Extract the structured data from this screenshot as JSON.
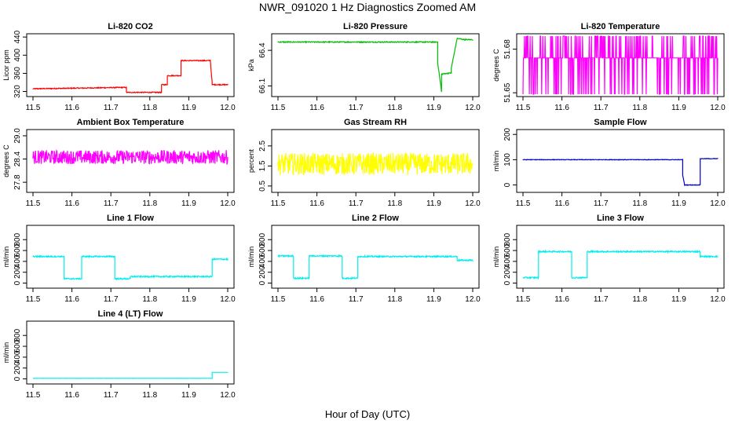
{
  "title": "NWR_091020  1 Hz Diagnostics Zoomed AM",
  "xlabel": "Hour of Day (UTC)",
  "chart_data": [
    {
      "id": "co2",
      "type": "line",
      "title": "Li-820 CO2",
      "ylabel": "Licor ppm",
      "color": "#ff0000",
      "xlim": [
        11.5,
        12.0
      ],
      "xticks": [
        "11.5",
        "11.6",
        "11.7",
        "11.8",
        "11.9",
        "12.0"
      ],
      "ylim": [
        314,
        442
      ],
      "yticks": [
        "320",
        "360",
        "400",
        "440"
      ],
      "noise": 1,
      "x": [
        11.5,
        11.74,
        11.74,
        11.83,
        11.83,
        11.845,
        11.845,
        11.88,
        11.88,
        11.955,
        11.955,
        11.96,
        11.96,
        11.96,
        12.0
      ],
      "y": [
        326,
        329,
        318,
        318,
        335,
        335,
        355,
        355,
        388,
        388,
        390,
        340,
        340,
        335,
        335
      ]
    },
    {
      "id": "pressure",
      "type": "line",
      "title": "Li-820 Pressure",
      "ylabel": "kPa",
      "color": "#00bb00",
      "xlim": [
        11.5,
        12.0
      ],
      "xticks": [
        "11.5",
        "11.6",
        "11.7",
        "11.8",
        "11.9",
        "12.0"
      ],
      "ylim": [
        66.03,
        66.52
      ],
      "yticks": [
        "66.1",
        "66.4"
      ],
      "noise": 0.004,
      "x": [
        11.5,
        11.91,
        11.91,
        11.92,
        11.92,
        11.945,
        11.945,
        11.96,
        11.96,
        11.98,
        11.98,
        12.0
      ],
      "y": [
        66.47,
        66.47,
        66.3,
        66.05,
        66.2,
        66.21,
        66.25,
        66.5,
        66.5,
        66.49,
        66.49,
        66.49
      ]
    },
    {
      "id": "temperature",
      "type": "line",
      "title": "Li-820 Temperature",
      "ylabel": "degrees C",
      "color": "#ff00ff",
      "xlim": [
        11.5,
        12.0
      ],
      "xticks": [
        "11.5",
        "11.6",
        "11.7",
        "11.8",
        "11.9",
        "12.0"
      ],
      "ylim": [
        51.649,
        51.689
      ],
      "yticks": [
        "51.65",
        "51.68"
      ],
      "states": [
        51.649,
        51.674,
        51.689
      ],
      "noise": 0,
      "x": [
        11.5,
        12.0
      ],
      "y": [
        51.674,
        51.674
      ]
    },
    {
      "id": "ambient",
      "type": "line",
      "title": "Ambient Box Temperature",
      "ylabel": "degrees C",
      "color": "#ff00ff",
      "xlim": [
        11.5,
        12.0
      ],
      "xticks": [
        "11.5",
        "11.6",
        "11.7",
        "11.8",
        "11.9",
        "12.0"
      ],
      "ylim": [
        27.6,
        29.1
      ],
      "yticks": [
        "27.8",
        "28.4",
        "29.0"
      ],
      "noise": 0.18,
      "x": [
        11.5,
        12.0
      ],
      "y": [
        28.45,
        28.45
      ]
    },
    {
      "id": "gasrh",
      "type": "line",
      "title": "Gas Stream RH",
      "ylabel": "percent",
      "color": "#ffff00",
      "xlim": [
        11.5,
        12.0
      ],
      "xticks": [
        "11.5",
        "11.6",
        "11.7",
        "11.8",
        "11.9",
        "12.0"
      ],
      "ylim": [
        0.3,
        3.2
      ],
      "yticks": [
        "0.5",
        "1.5",
        "2.5"
      ],
      "noise": 0.55,
      "x": [
        11.5,
        12.0
      ],
      "y": [
        1.6,
        1.6
      ]
    },
    {
      "id": "sampleflow",
      "type": "line",
      "title": "Sample Flow",
      "ylabel": "ml/min",
      "color": "#0000cc",
      "xlim": [
        11.5,
        12.0
      ],
      "xticks": [
        "11.5",
        "11.6",
        "11.7",
        "11.8",
        "11.9",
        "12.0"
      ],
      "ylim": [
        -20,
        210
      ],
      "yticks": [
        "0",
        "100",
        "200"
      ],
      "noise": 1,
      "x": [
        11.5,
        11.91,
        11.91,
        11.915,
        11.915,
        11.955,
        11.955,
        12.0
      ],
      "y": [
        100,
        100,
        40,
        0,
        0,
        0,
        104,
        104
      ]
    },
    {
      "id": "line1",
      "type": "line",
      "title": "Line 1 Flow",
      "ylabel": "ml/min",
      "color": "#00eeee",
      "xlim": [
        11.5,
        12.0
      ],
      "xticks": [
        "11.5",
        "11.6",
        "11.7",
        "11.8",
        "11.9",
        "12.0"
      ],
      "ylim": [
        -50,
        1020
      ],
      "yticks": [
        "0",
        "200",
        "400",
        "600",
        "800"
      ],
      "noise": 12,
      "x": [
        11.5,
        11.58,
        11.58,
        11.625,
        11.625,
        11.71,
        11.71,
        11.75,
        11.75,
        11.96,
        11.96,
        12.0
      ],
      "y": [
        490,
        490,
        80,
        80,
        490,
        490,
        80,
        80,
        120,
        120,
        440,
        440
      ]
    },
    {
      "id": "line2",
      "type": "line",
      "title": "Line 2 Flow",
      "ylabel": "ml/min",
      "color": "#00eeee",
      "xlim": [
        11.5,
        12.0
      ],
      "xticks": [
        "11.5",
        "11.6",
        "11.7",
        "11.8",
        "11.9",
        "12.0"
      ],
      "ylim": [
        -50,
        1020
      ],
      "yticks": [
        "0",
        "200",
        "400",
        "600",
        "800"
      ],
      "noise": 12,
      "x": [
        11.5,
        11.54,
        11.54,
        11.58,
        11.58,
        11.665,
        11.665,
        11.705,
        11.705,
        11.96,
        11.96,
        12.0
      ],
      "y": [
        500,
        500,
        90,
        90,
        500,
        500,
        90,
        90,
        490,
        490,
        420,
        420
      ]
    },
    {
      "id": "line3",
      "type": "line",
      "title": "Line 3 Flow",
      "ylabel": "ml/min",
      "color": "#00eeee",
      "xlim": [
        11.5,
        12.0
      ],
      "xticks": [
        "11.5",
        "11.6",
        "11.7",
        "11.8",
        "11.9",
        "12.0"
      ],
      "ylim": [
        -50,
        1020
      ],
      "yticks": [
        "0",
        "200",
        "400",
        "600",
        "800"
      ],
      "noise": 12,
      "x": [
        11.5,
        11.54,
        11.54,
        11.625,
        11.625,
        11.665,
        11.665,
        11.955,
        11.955,
        12.0
      ],
      "y": [
        100,
        100,
        580,
        580,
        100,
        100,
        580,
        580,
        490,
        490
      ]
    },
    {
      "id": "line4",
      "type": "line",
      "title": "Line 4 (LT) Flow",
      "ylabel": "ml/min",
      "color": "#00eeee",
      "xlim": [
        11.5,
        12.0
      ],
      "xticks": [
        "11.5",
        "11.6",
        "11.7",
        "11.8",
        "11.9",
        "12.0"
      ],
      "ylim": [
        -50,
        1020
      ],
      "yticks": [
        "0",
        "200",
        "400",
        "600",
        "800"
      ],
      "noise": 1,
      "x": [
        11.5,
        11.96,
        11.96,
        12.0
      ],
      "y": [
        10,
        10,
        120,
        120
      ]
    }
  ]
}
